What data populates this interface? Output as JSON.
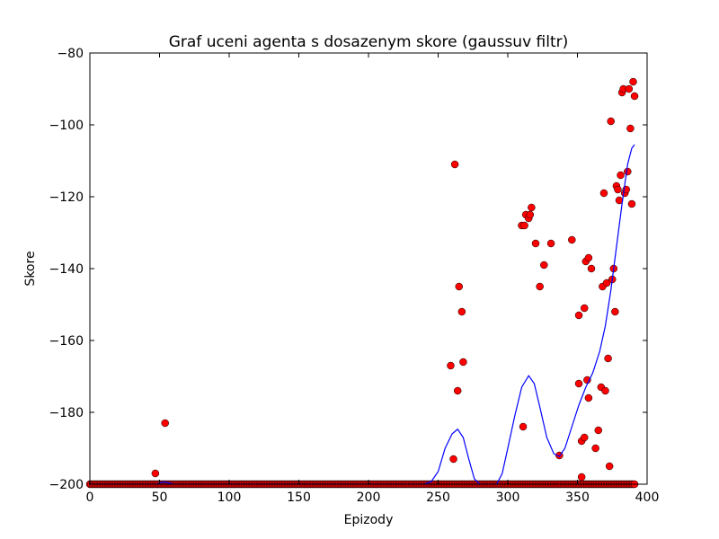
{
  "chart_data": {
    "type": "scatter",
    "title": "Graf uceni agenta s dosazenym skore (gaussuv filtr)",
    "xlabel": "Epizody",
    "ylabel": "Skore",
    "xlim": [
      0,
      400
    ],
    "ylim": [
      -200,
      -80
    ],
    "xticks": [
      0,
      50,
      100,
      150,
      200,
      250,
      300,
      350,
      400
    ],
    "yticks": [
      -200,
      -180,
      -160,
      -140,
      -120,
      -100,
      -80
    ],
    "xtick_labels": [
      "0",
      "50",
      "100",
      "150",
      "200",
      "250",
      "300",
      "350",
      "400"
    ],
    "ytick_labels": [
      "−200",
      "−180",
      "−160",
      "−140",
      "−120",
      "−100",
      "−80"
    ],
    "grid": false,
    "legend": "none",
    "series": [
      {
        "style": "markers",
        "color": "#ff0000",
        "edge_color": "#000000",
        "baseline_range": [
          0,
          391
        ],
        "baseline_value": -200,
        "points": [
          [
            47,
            -197
          ],
          [
            54,
            -183
          ],
          [
            259,
            -167
          ],
          [
            261,
            -193
          ],
          [
            262,
            -111
          ],
          [
            264,
            -174
          ],
          [
            265,
            -145
          ],
          [
            267,
            -152
          ],
          [
            268,
            -166
          ],
          [
            310,
            -128
          ],
          [
            311,
            -184
          ],
          [
            312,
            -128
          ],
          [
            313,
            -125
          ],
          [
            315,
            -126
          ],
          [
            316,
            -125
          ],
          [
            317,
            -123
          ],
          [
            320,
            -133
          ],
          [
            323,
            -145
          ],
          [
            326,
            -139
          ],
          [
            331,
            -133
          ],
          [
            337,
            -192
          ],
          [
            346,
            -132
          ],
          [
            351,
            -172
          ],
          [
            351,
            -153
          ],
          [
            353,
            -198
          ],
          [
            353,
            -188
          ],
          [
            355,
            -151
          ],
          [
            355,
            -187
          ],
          [
            356,
            -138
          ],
          [
            357,
            -171
          ],
          [
            358,
            -176
          ],
          [
            358,
            -137
          ],
          [
            360,
            -140
          ],
          [
            363,
            -190
          ],
          [
            365,
            -185
          ],
          [
            367,
            -173
          ],
          [
            368,
            -145
          ],
          [
            369,
            -119
          ],
          [
            370,
            -174
          ],
          [
            371,
            -144
          ],
          [
            372,
            -165
          ],
          [
            373,
            -195
          ],
          [
            374,
            -99
          ],
          [
            375,
            -143
          ],
          [
            376,
            -140
          ],
          [
            377,
            -152
          ],
          [
            378,
            -117
          ],
          [
            379,
            -118
          ],
          [
            380,
            -121
          ],
          [
            381,
            -114
          ],
          [
            382,
            -91
          ],
          [
            383,
            -90
          ],
          [
            384,
            -119
          ],
          [
            385,
            -118
          ],
          [
            386,
            -113
          ],
          [
            387,
            -90
          ],
          [
            388,
            -101
          ],
          [
            389,
            -122
          ],
          [
            390,
            -88
          ],
          [
            391,
            -92
          ]
        ]
      },
      {
        "style": "line",
        "color": "#0000ff",
        "points": [
          [
            0,
            -200
          ],
          [
            48,
            -200
          ],
          [
            52,
            -199.4
          ],
          [
            55,
            -199.5
          ],
          [
            60,
            -200
          ],
          [
            240,
            -200
          ],
          [
            245,
            -199.3
          ],
          [
            250,
            -196.5
          ],
          [
            255,
            -190
          ],
          [
            260,
            -186
          ],
          [
            264,
            -184.7
          ],
          [
            268,
            -187
          ],
          [
            272,
            -193
          ],
          [
            276,
            -198.5
          ],
          [
            280,
            -200
          ],
          [
            292,
            -200
          ],
          [
            296,
            -197
          ],
          [
            300,
            -190
          ],
          [
            305,
            -181
          ],
          [
            310,
            -173
          ],
          [
            315,
            -169.8
          ],
          [
            319,
            -172
          ],
          [
            323,
            -178.5
          ],
          [
            328,
            -187
          ],
          [
            333,
            -191.5
          ],
          [
            337,
            -192.3
          ],
          [
            341,
            -190
          ],
          [
            346,
            -184
          ],
          [
            351,
            -178
          ],
          [
            356,
            -173
          ],
          [
            361,
            -169
          ],
          [
            366,
            -163
          ],
          [
            370,
            -156
          ],
          [
            374,
            -146
          ],
          [
            378,
            -134
          ],
          [
            382,
            -122
          ],
          [
            386,
            -111
          ],
          [
            389,
            -106.5
          ],
          [
            391,
            -105.5
          ]
        ]
      }
    ]
  }
}
